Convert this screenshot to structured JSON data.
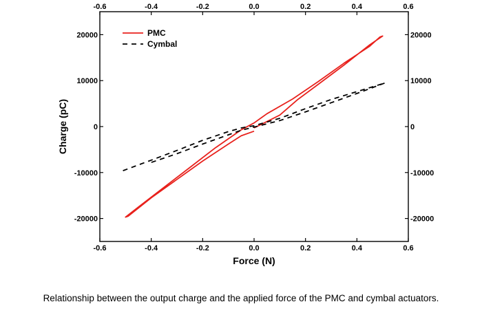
{
  "caption": "Relationship between the output charge and the applied force of the PMC and cymbal actuators.",
  "chart_data": {
    "type": "line",
    "title": "",
    "xlabel": "Force (N)",
    "ylabel": "Charge (pC)",
    "xlim": [
      -0.6,
      0.6
    ],
    "ylim": [
      -25000,
      25000
    ],
    "x_ticks": [
      -0.6,
      -0.4,
      -0.2,
      0.0,
      0.2,
      0.4,
      0.6
    ],
    "x_tick_labels": [
      "-0.6",
      "-0.4",
      "-0.2",
      "0.0",
      "0.2",
      "0.4",
      "0.6"
    ],
    "y_ticks": [
      -20000,
      -10000,
      0,
      10000,
      20000
    ],
    "y_tick_labels": [
      "-20000",
      "-10000",
      "0",
      "10000",
      "20000"
    ],
    "grid": false,
    "legend_position": "top-left",
    "mirror_axes": "top-right",
    "series": [
      {
        "name": "PMC",
        "color": "#e8211c",
        "style": "solid",
        "x": [
          0.0,
          -0.05,
          -0.1,
          -0.2,
          -0.3,
          -0.4,
          -0.49,
          -0.5,
          -0.45,
          -0.35,
          -0.25,
          -0.15,
          -0.05,
          0.0,
          0.05,
          0.15,
          0.25,
          0.35,
          0.45,
          0.49,
          0.5,
          0.45,
          0.35,
          0.25,
          0.17,
          0.1,
          0.0
        ],
        "y": [
          -1000,
          -2000,
          -3800,
          -7500,
          -11500,
          -15500,
          -19500,
          -19700,
          -17500,
          -13200,
          -8900,
          -4600,
          -700,
          800,
          2800,
          6000,
          9800,
          13800,
          17500,
          19500,
          19700,
          17800,
          13400,
          9200,
          5900,
          2500,
          -300
        ]
      },
      {
        "name": "Cymbal",
        "color": "#000000",
        "style": "dashed",
        "x": [
          -0.51,
          -0.4,
          -0.3,
          -0.2,
          -0.1,
          -0.05,
          0.0,
          0.1,
          0.2,
          0.3,
          0.4,
          0.51,
          0.4,
          0.3,
          0.2,
          0.1,
          0.0,
          -0.05,
          -0.1,
          -0.2,
          -0.3,
          -0.4
        ],
        "y": [
          -9600,
          -7300,
          -5200,
          -3000,
          -1100,
          -300,
          200,
          1800,
          3900,
          5900,
          7600,
          9500,
          7200,
          5200,
          3200,
          1300,
          -100,
          -800,
          -1800,
          -3800,
          -5900,
          -7800
        ]
      }
    ]
  }
}
